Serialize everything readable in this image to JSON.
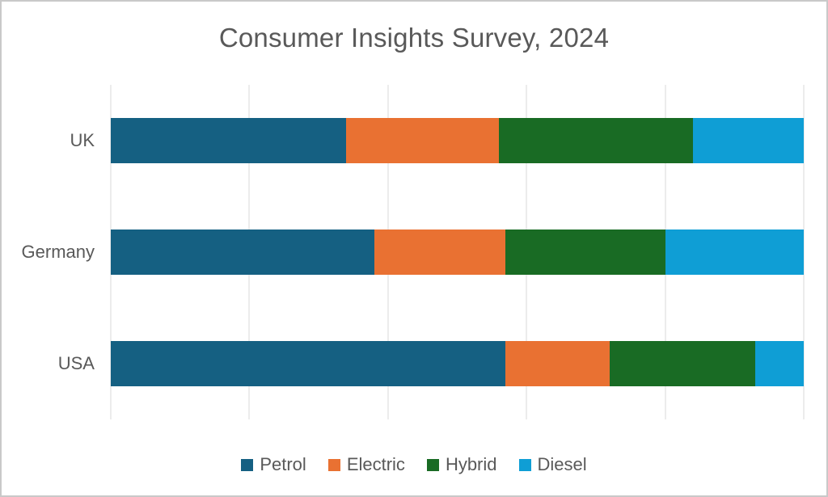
{
  "chart_data": {
    "type": "bar",
    "orientation": "horizontal",
    "stacked": true,
    "title": "Consumer Insights Survey, 2024",
    "categories": [
      "UK",
      "Germany",
      "USA"
    ],
    "series": [
      {
        "name": "Petrol",
        "color": "#156082",
        "values": [
          34,
          38,
          57
        ]
      },
      {
        "name": "Electric",
        "color": "#E97132",
        "values": [
          22,
          19,
          15
        ]
      },
      {
        "name": "Hybrid",
        "color": "#196B24",
        "values": [
          28,
          23,
          21
        ]
      },
      {
        "name": "Diesel",
        "color": "#0F9ED5",
        "values": [
          16,
          20,
          7
        ]
      }
    ],
    "xlim": [
      0,
      100
    ],
    "gridline_interval": 20,
    "grid": true,
    "axis_tick_labels_visible": false,
    "legend_position": "bottom"
  },
  "styles": {
    "title_color": "#595959",
    "label_color": "#595959",
    "gridline_color": "#D9D9D9",
    "background": "#FFFFFF"
  }
}
